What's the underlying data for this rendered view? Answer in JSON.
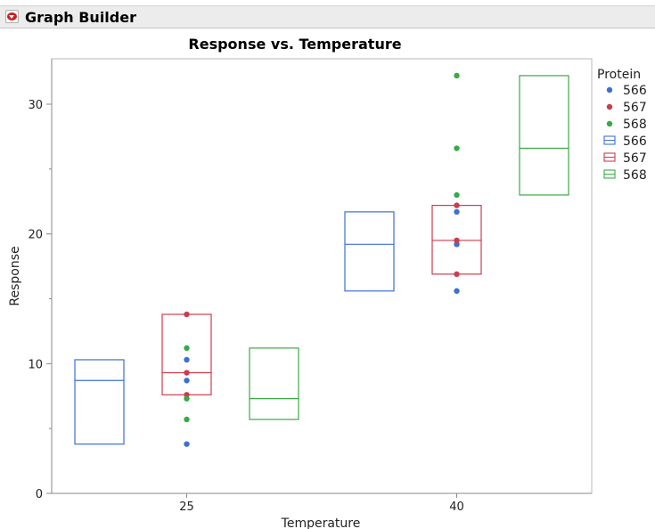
{
  "window": {
    "title": "Graph Builder"
  },
  "chart_data": {
    "type": "box",
    "title": "Response vs. Temperature",
    "xlabel": "Temperature",
    "ylabel": "Response",
    "categories": [
      "25",
      "40"
    ],
    "ylim": [
      0,
      33.5
    ],
    "yticks": [
      0,
      10,
      20,
      30
    ],
    "grid": false,
    "legend": {
      "title": "Protein",
      "position": "right",
      "point_entries": [
        "566",
        "567",
        "568"
      ],
      "box_entries": [
        "566",
        "567",
        "568"
      ]
    },
    "series": [
      {
        "name": "566",
        "color": "#3d6fd6",
        "points": {
          "25": [
            3.8,
            8.7,
            10.3
          ],
          "40": [
            15.6,
            19.2,
            21.7
          ]
        },
        "boxes": {
          "25": {
            "q1": 3.8,
            "median": 8.7,
            "q3": 10.3
          },
          "40": {
            "q1": 15.6,
            "median": 19.2,
            "q3": 21.7
          }
        }
      },
      {
        "name": "567",
        "color": "#cc3d4d",
        "points": {
          "25": [
            7.6,
            9.3,
            13.8
          ],
          "40": [
            16.9,
            19.5,
            22.2
          ]
        },
        "boxes": {
          "25": {
            "q1": 7.6,
            "median": 9.3,
            "q3": 13.8
          },
          "40": {
            "q1": 16.9,
            "median": 19.5,
            "q3": 22.2
          }
        }
      },
      {
        "name": "568",
        "color": "#3aa946",
        "points": {
          "25": [
            5.7,
            7.3,
            11.2
          ],
          "40": [
            23.0,
            26.6,
            32.2
          ]
        },
        "boxes": {
          "25": {
            "q1": 5.7,
            "median": 7.3,
            "q3": 11.2
          },
          "40": {
            "q1": 23.0,
            "median": 26.6,
            "q3": 32.2
          }
        }
      }
    ]
  }
}
